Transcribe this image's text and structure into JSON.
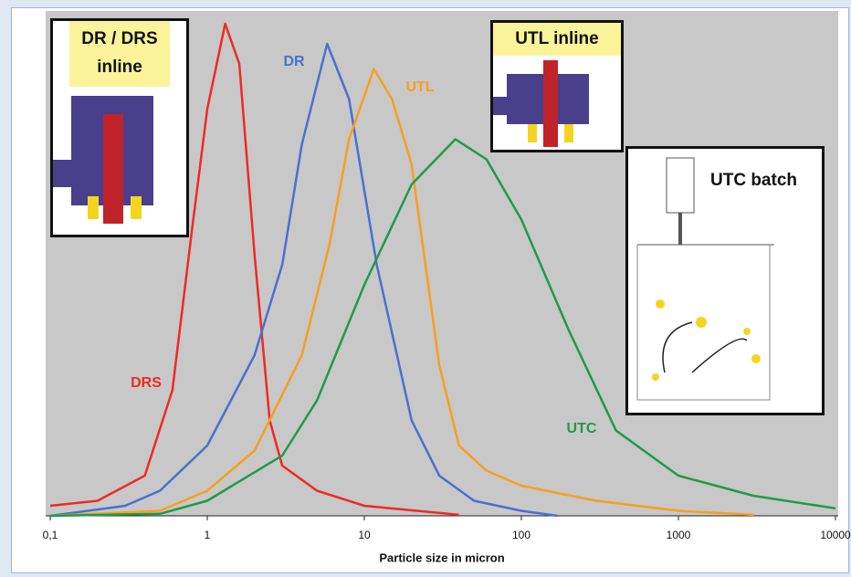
{
  "chart_data": {
    "type": "line",
    "xlabel": "Particle size in micron",
    "xscale": "log",
    "xlim": [
      0.1,
      10000
    ],
    "xticks": [
      {
        "value": 0.1,
        "label": "0,1"
      },
      1,
      10,
      100,
      1000,
      10000
    ],
    "ylim": [
      0,
      100
    ],
    "series": [
      {
        "name": "DRS",
        "color": "#ee2a24",
        "x": [
          0.1,
          0.2,
          0.4,
          0.6,
          0.8,
          1,
          1.3,
          1.6,
          2,
          2.5,
          3,
          5,
          10,
          40
        ],
        "values": [
          2,
          3,
          8,
          25,
          57,
          81,
          98,
          90,
          52,
          19,
          10,
          5,
          2,
          0.2
        ]
      },
      {
        "name": "DR",
        "color": "#4a6fd0",
        "x": [
          0.1,
          0.3,
          0.5,
          1,
          2,
          3,
          4,
          5.8,
          8,
          12,
          20,
          30,
          50,
          100,
          170
        ],
        "values": [
          0,
          2,
          5,
          14,
          32,
          50,
          74,
          94,
          83,
          50,
          19,
          8,
          3,
          1,
          0
        ]
      },
      {
        "name": "UTL",
        "color": "#f99e1e",
        "x": [
          0.1,
          0.5,
          1,
          2,
          4,
          6,
          8,
          11.5,
          15,
          20,
          30,
          40,
          60,
          100,
          300,
          1000,
          3000
        ],
        "values": [
          0,
          1,
          5,
          13,
          32,
          54,
          75,
          89,
          83,
          70,
          30,
          14,
          9,
          6,
          3,
          1,
          0.2
        ]
      },
      {
        "name": "UTC",
        "color": "#1e9a4a",
        "x": [
          0.1,
          0.5,
          1,
          3,
          5,
          10,
          20,
          38,
          60,
          100,
          200,
          400,
          1000,
          3000,
          10000
        ],
        "values": [
          0,
          0.4,
          3,
          12,
          23,
          46,
          66,
          75,
          71,
          59,
          37,
          17,
          8,
          4,
          1.5
        ]
      }
    ],
    "annotations": [
      "DR / DRS inline",
      "UTL inline",
      "UTC batch"
    ]
  }
}
